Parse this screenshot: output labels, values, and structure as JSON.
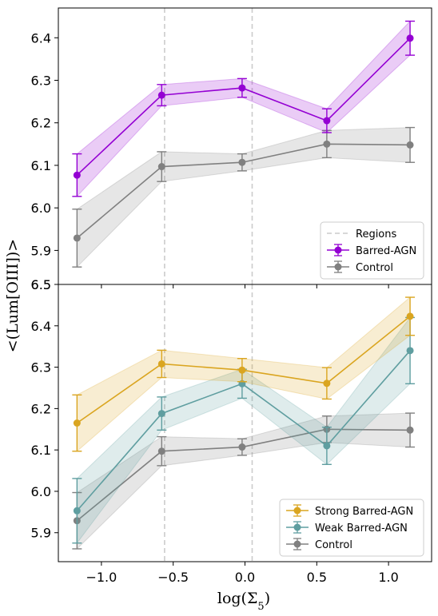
{
  "chart_data": [
    {
      "type": "line",
      "panel": "top",
      "xlabel": "log(Σ5)",
      "ylabel": "<(Lum[OIII])>",
      "xlim": [
        -1.3,
        1.3
      ],
      "ylim": [
        5.82,
        6.47
      ],
      "yticks": [
        5.9,
        6.0,
        6.1,
        6.2,
        6.3,
        6.4
      ],
      "ytick_labels": [
        "5.9",
        "6.0",
        "6.1",
        "6.2",
        "6.3",
        "6.4"
      ],
      "extra_ytick_labels": [
        {
          "value": 6.5,
          "label": "6.5"
        }
      ],
      "region_lines": [
        -0.56,
        0.05
      ],
      "legend_position": "lower-right",
      "legend_labels": {
        "regions": "Regions"
      },
      "series": [
        {
          "name": "Barred-AGN",
          "color": "#9400D3",
          "x": [
            -1.17,
            -0.58,
            -0.02,
            0.57,
            1.15
          ],
          "y": [
            6.077,
            6.265,
            6.282,
            6.205,
            6.399
          ],
          "yerr": [
            0.05,
            0.025,
            0.022,
            0.028,
            0.04
          ]
        },
        {
          "name": "Control",
          "color": "#808080",
          "x": [
            -1.17,
            -0.58,
            -0.02,
            0.57,
            1.15
          ],
          "y": [
            5.929,
            6.097,
            6.107,
            6.15,
            6.148
          ],
          "yerr": [
            0.068,
            0.035,
            0.02,
            0.032,
            0.041
          ]
        }
      ]
    },
    {
      "type": "line",
      "panel": "bottom",
      "xlabel": "log(Σ5)",
      "ylabel": "<(Lum[OIII])>",
      "xlim": [
        -1.3,
        1.3
      ],
      "ylim": [
        5.83,
        6.5
      ],
      "yticks": [
        5.9,
        6.0,
        6.1,
        6.2,
        6.3,
        6.4,
        6.5
      ],
      "ytick_labels": [
        "5.9",
        "6.0",
        "6.1",
        "6.2",
        "6.3",
        "6.4",
        "6.5"
      ],
      "xticks": [
        -1.0,
        -0.5,
        0.0,
        0.5,
        1.0
      ],
      "xtick_labels": [
        "−1.0",
        "−0.5",
        "0.0",
        "0.5",
        "1.0"
      ],
      "region_lines": [
        -0.56,
        0.05
      ],
      "legend_position": "lower-right",
      "series": [
        {
          "name": "Strong Barred-AGN",
          "color": "#DAA520",
          "x": [
            -1.17,
            -0.58,
            -0.02,
            0.57,
            1.15
          ],
          "y": [
            6.165,
            6.308,
            6.293,
            6.261,
            6.423
          ],
          "yerr": [
            0.068,
            0.033,
            0.028,
            0.038,
            0.046
          ]
        },
        {
          "name": "Weak Barred-AGN",
          "color": "#5F9EA0",
          "x": [
            -1.17,
            -0.58,
            -0.02,
            0.57,
            1.15
          ],
          "y": [
            5.953,
            6.188,
            6.26,
            6.11,
            6.34
          ],
          "yerr": [
            0.078,
            0.04,
            0.035,
            0.045,
            0.08
          ]
        },
        {
          "name": "Control",
          "color": "#808080",
          "x": [
            -1.17,
            -0.58,
            -0.02,
            0.57,
            1.15
          ],
          "y": [
            5.929,
            6.097,
            6.107,
            6.15,
            6.148
          ],
          "yerr": [
            0.068,
            0.035,
            0.02,
            0.032,
            0.041
          ]
        }
      ]
    }
  ]
}
